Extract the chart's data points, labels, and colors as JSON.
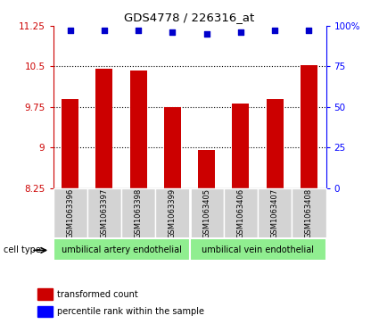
{
  "title": "GDS4778 / 226316_at",
  "samples": [
    "GSM1063396",
    "GSM1063397",
    "GSM1063398",
    "GSM1063399",
    "GSM1063405",
    "GSM1063406",
    "GSM1063407",
    "GSM1063408"
  ],
  "bar_values": [
    9.9,
    10.45,
    10.42,
    9.75,
    8.95,
    9.82,
    9.9,
    10.52
  ],
  "percentile_values": [
    97,
    97,
    97,
    96,
    95,
    96,
    97,
    97
  ],
  "bar_color": "#cc0000",
  "dot_color": "#0000cc",
  "ylim_left": [
    8.25,
    11.25
  ],
  "yticks_left": [
    8.25,
    9.0,
    9.75,
    10.5,
    11.25
  ],
  "ytick_labels_left": [
    "8.25",
    "9",
    "9.75",
    "10.5",
    "11.25"
  ],
  "ylim_right": [
    0,
    100
  ],
  "yticks_right": [
    0,
    25,
    50,
    75,
    100
  ],
  "ytick_labels_right": [
    "0",
    "25",
    "50",
    "75",
    "100%"
  ],
  "cell_type_groups": [
    {
      "label": "umbilical artery endothelial",
      "color": "#90ee90",
      "start": 0,
      "end": 4
    },
    {
      "label": "umbilical vein endothelial",
      "color": "#90ee90",
      "start": 4,
      "end": 8
    }
  ],
  "cell_type_label": "cell type",
  "legend_red_label": "transformed count",
  "legend_blue_label": "percentile rank within the sample",
  "background_color": "#ffffff",
  "bar_width": 0.5,
  "gridlines": [
    9.0,
    9.75,
    10.5
  ]
}
